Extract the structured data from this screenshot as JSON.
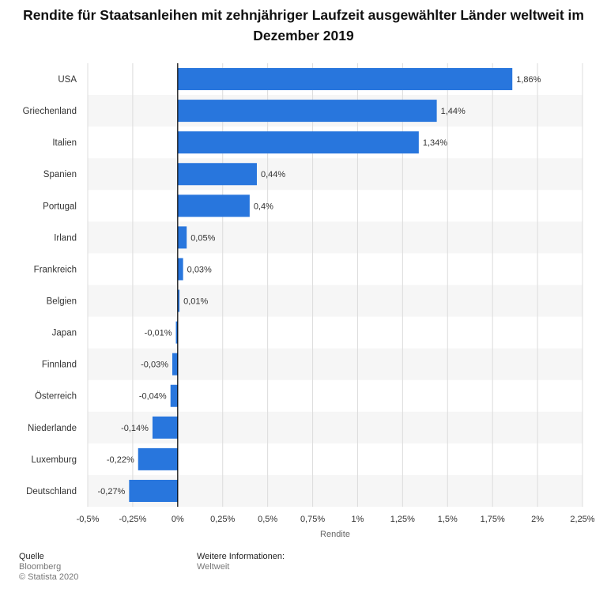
{
  "title": "Rendite für Staatsanleihen mit zehnjähriger Laufzeit ausgewählter Länder weltweit im Dezember 2019",
  "footer": {
    "source_label": "Quelle",
    "source_value": "Bloomberg",
    "copyright": "© Statista 2020",
    "info_label": "Weitere Informationen:",
    "info_value": "Weltweit"
  },
  "colors": {
    "bar": "#2876dd",
    "band": "#f6f6f6",
    "grid": "#dcdcdc",
    "axis": "#000000"
  },
  "chart_data": {
    "type": "bar",
    "orientation": "horizontal",
    "title": "Rendite für Staatsanleihen mit zehnjähriger Laufzeit ausgewählter Länder weltweit im Dezember 2019",
    "xlabel": "Rendite",
    "ylabel": "",
    "categories": [
      "USA",
      "Griechenland",
      "Italien",
      "Spanien",
      "Portugal",
      "Irland",
      "Frankreich",
      "Belgien",
      "Japan",
      "Finnland",
      "Österreich",
      "Niederlande",
      "Luxemburg",
      "Deutschland"
    ],
    "values": [
      1.86,
      1.44,
      1.34,
      0.44,
      0.4,
      0.05,
      0.03,
      0.01,
      -0.01,
      -0.03,
      -0.04,
      -0.14,
      -0.22,
      -0.27
    ],
    "value_labels": [
      "1,86%",
      "1,44%",
      "1,34%",
      "0,44%",
      "0,4%",
      "0,05%",
      "0,03%",
      "0,01%",
      "-0,01%",
      "-0,03%",
      "-0,04%",
      "-0,14%",
      "-0,22%",
      "-0,27%"
    ],
    "xlim": [
      -0.5,
      2.25
    ],
    "xticks": [
      -0.5,
      -0.25,
      0,
      0.25,
      0.5,
      0.75,
      1,
      1.25,
      1.5,
      1.75,
      2,
      2.25
    ],
    "xtick_labels": [
      "-0,5%",
      "-0,25%",
      "0%",
      "0,25%",
      "0,5%",
      "0,75%",
      "1%",
      "1,25%",
      "1,5%",
      "1,75%",
      "2%",
      "2,25%"
    ],
    "grid": true,
    "legend": "none"
  }
}
